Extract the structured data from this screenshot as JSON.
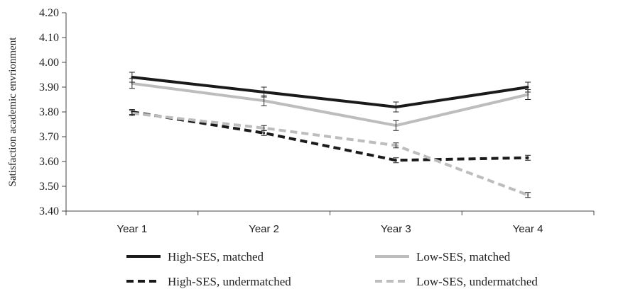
{
  "chart_data": {
    "type": "line",
    "title": "",
    "xlabel": "",
    "ylabel": "Satisfaction academic envrionment",
    "categories": [
      "Year 1",
      "Year 2",
      "Year 3",
      "Year 4"
    ],
    "ylim": [
      3.4,
      4.2
    ],
    "yticks": [
      "3.40",
      "3.50",
      "3.60",
      "3.70",
      "3.80",
      "3.90",
      "4.00",
      "4.10",
      "4.20"
    ],
    "grid": false,
    "legend_position": "bottom",
    "series": [
      {
        "name": "High-SES, matched",
        "values": [
          3.94,
          3.88,
          3.82,
          3.9
        ],
        "errors": [
          0.02,
          0.02,
          0.02,
          0.02
        ],
        "color": "#1a1a1a",
        "style": "solid"
      },
      {
        "name": "Low-SES, matched",
        "values": [
          3.915,
          3.845,
          3.745,
          3.87
        ],
        "errors": [
          0.02,
          0.02,
          0.02,
          0.02
        ],
        "color": "#bdbdbd",
        "style": "solid"
      },
      {
        "name": "High-SES, undermatched",
        "values": [
          3.8,
          3.715,
          3.605,
          3.615
        ],
        "errors": [
          0.01,
          0.01,
          0.01,
          0.01
        ],
        "color": "#1a1a1a",
        "style": "dashed"
      },
      {
        "name": "Low-SES, undermatched",
        "values": [
          3.795,
          3.735,
          3.665,
          3.465
        ],
        "errors": [
          0.01,
          0.01,
          0.01,
          0.01
        ],
        "color": "#bdbdbd",
        "style": "dashed"
      }
    ]
  }
}
